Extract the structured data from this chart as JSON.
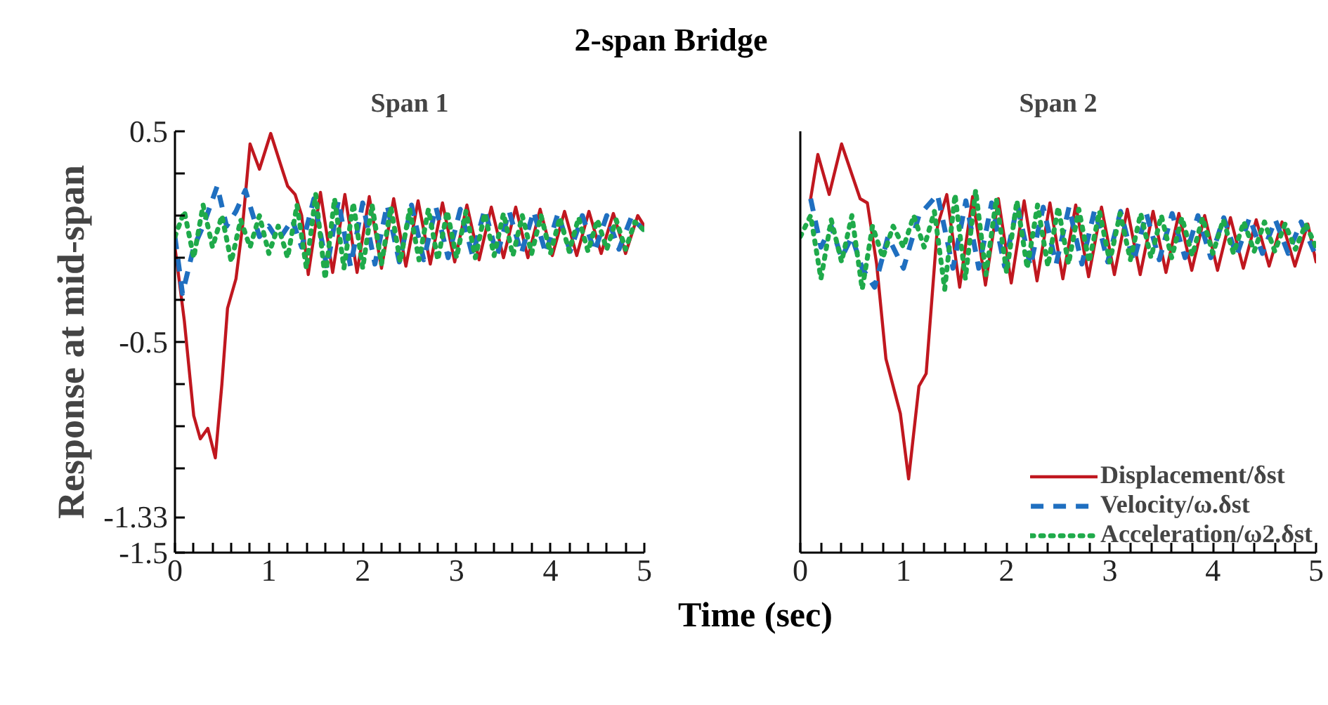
{
  "chart_data": [
    {
      "type": "line",
      "title": "2-span Bridge",
      "subtitle": "Span 1",
      "xlabel": "Time (sec)",
      "ylabel": "Response at mid-span",
      "xlim": [
        0,
        5
      ],
      "ylim": [
        -1.5,
        0.5
      ],
      "xticks": [
        0,
        {
          "value": 0.2,
          "label": null
        },
        {
          "value": 0.4,
          "label": null
        },
        {
          "value": 0.6,
          "label": null
        },
        {
          "value": 0.8,
          "label": null
        },
        1,
        {
          "value": 1.2,
          "label": null
        },
        {
          "value": 1.4,
          "label": null
        },
        {
          "value": 1.6,
          "label": null
        },
        {
          "value": 1.8,
          "label": null
        },
        2,
        {
          "value": 2.2,
          "label": null
        },
        {
          "value": 2.4,
          "label": null
        },
        {
          "value": 2.6,
          "label": null
        },
        {
          "value": 2.8,
          "label": null
        },
        3,
        {
          "value": 3.2,
          "label": null
        },
        {
          "value": 3.4,
          "label": null
        },
        {
          "value": 3.6,
          "label": null
        },
        {
          "value": 3.8,
          "label": null
        },
        4,
        {
          "value": 4.2,
          "label": null
        },
        {
          "value": 4.4,
          "label": null
        },
        {
          "value": 4.6,
          "label": null
        },
        {
          "value": 4.8,
          "label": null
        },
        5
      ],
      "yticks": [
        0.5,
        {
          "value": 0.3,
          "label": null
        },
        {
          "value": 0.1,
          "label": null
        },
        {
          "value": -0.1,
          "label": null
        },
        {
          "value": -0.3,
          "label": null
        },
        -0.5,
        {
          "value": -0.7,
          "label": null
        },
        {
          "value": -0.9,
          "label": null
        },
        {
          "value": -1.1,
          "label": null
        },
        -1.33,
        -1.5
      ],
      "series": [
        {
          "color": "#c0171f",
          "line_style": "solid",
          "x": [
            0,
            0.1,
            0.2,
            0.27,
            0.35,
            0.43,
            0.5,
            0.56,
            0.65,
            0.72,
            0.8,
            0.9,
            1.02,
            1.12,
            1.2,
            1.28,
            1.35,
            1.42,
            1.55,
            1.68,
            1.81,
            1.94,
            2.07,
            2.2,
            2.33,
            2.46,
            2.59,
            2.72,
            2.85,
            2.98,
            3.11,
            3.24,
            3.37,
            3.5,
            3.63,
            3.76,
            3.89,
            4.02,
            4.15,
            4.28,
            4.41,
            4.54,
            4.67,
            4.8,
            4.93,
            5
          ],
          "values": [
            -0.05,
            -0.4,
            -0.85,
            -0.96,
            -0.91,
            -1.05,
            -0.7,
            -0.34,
            -0.2,
            0.05,
            0.44,
            0.32,
            0.49,
            0.35,
            0.24,
            0.2,
            0.1,
            -0.18,
            0.21,
            -0.17,
            0.2,
            -0.17,
            0.19,
            -0.15,
            0.18,
            -0.14,
            0.17,
            -0.13,
            0.16,
            -0.12,
            0.15,
            -0.11,
            0.14,
            -0.1,
            0.14,
            -0.1,
            0.13,
            -0.09,
            0.12,
            -0.09,
            0.12,
            -0.08,
            0.11,
            -0.08,
            0.1,
            0.05
          ]
        },
        {
          "color": "#1f6fc0",
          "line_style": "dashed",
          "x": [
            0,
            0.08,
            0.2,
            0.3,
            0.45,
            0.55,
            0.65,
            0.75,
            0.9,
            1.0,
            1.1,
            1.25,
            1.35,
            1.48,
            1.62,
            1.74,
            1.87,
            2.0,
            2.13,
            2.26,
            2.39,
            2.52,
            2.65,
            2.78,
            2.91,
            3.04,
            3.17,
            3.3,
            3.43,
            3.56,
            3.69,
            3.82,
            3.95,
            4.08,
            4.21,
            4.34,
            4.47,
            4.6,
            4.73,
            4.86,
            5.0
          ],
          "values": [
            0.0,
            -0.27,
            -0.05,
            0.05,
            0.24,
            0.05,
            0.12,
            0.22,
            0.0,
            0.05,
            -0.02,
            0.08,
            -0.05,
            0.18,
            -0.15,
            0.17,
            -0.14,
            0.16,
            -0.13,
            0.15,
            -0.12,
            0.15,
            -0.11,
            0.14,
            -0.1,
            0.13,
            -0.09,
            0.13,
            -0.09,
            0.12,
            -0.08,
            0.12,
            -0.08,
            0.11,
            -0.07,
            0.1,
            -0.07,
            0.1,
            -0.06,
            0.09,
            0.03
          ]
        },
        {
          "color": "#1faa4a",
          "line_style": "dotted",
          "x": [
            0,
            0.1,
            0.2,
            0.3,
            0.4,
            0.5,
            0.6,
            0.7,
            0.8,
            0.9,
            1.0,
            1.1,
            1.2,
            1.3,
            1.4,
            1.5,
            1.6,
            1.7,
            1.8,
            1.9,
            2.0,
            2.1,
            2.2,
            2.3,
            2.4,
            2.5,
            2.6,
            2.7,
            2.8,
            2.9,
            3.0,
            3.1,
            3.2,
            3.3,
            3.4,
            3.5,
            3.6,
            3.7,
            3.8,
            3.9,
            4.0,
            4.1,
            4.2,
            4.3,
            4.4,
            4.5,
            4.6,
            4.7,
            4.8,
            4.9,
            5.0
          ],
          "values": [
            0.0,
            0.12,
            -0.1,
            0.15,
            -0.05,
            0.1,
            -0.12,
            0.08,
            -0.05,
            0.1,
            -0.08,
            0.05,
            -0.1,
            0.15,
            -0.15,
            0.2,
            -0.2,
            0.18,
            -0.15,
            0.16,
            -0.15,
            0.15,
            -0.13,
            0.14,
            -0.12,
            0.13,
            -0.11,
            0.13,
            -0.11,
            0.12,
            -0.1,
            0.12,
            -0.1,
            0.11,
            -0.09,
            0.11,
            -0.09,
            0.1,
            -0.08,
            0.1,
            -0.08,
            0.09,
            -0.07,
            0.09,
            -0.07,
            0.08,
            -0.06,
            0.08,
            -0.06,
            0.07,
            0.03
          ]
        }
      ]
    },
    {
      "type": "line",
      "subtitle": "Span 2",
      "xlim": [
        0,
        5
      ],
      "ylim": [
        -1.5,
        0.5
      ],
      "tick_labels": "x",
      "legend": "bottom right",
      "xticks": [
        0,
        {
          "value": 0.2,
          "label": null
        },
        {
          "value": 0.4,
          "label": null
        },
        {
          "value": 0.6,
          "label": null
        },
        {
          "value": 0.8,
          "label": null
        },
        1,
        {
          "value": 1.2,
          "label": null
        },
        {
          "value": 1.4,
          "label": null
        },
        {
          "value": 1.6,
          "label": null
        },
        {
          "value": 1.8,
          "label": null
        },
        2,
        {
          "value": 2.2,
          "label": null
        },
        {
          "value": 2.4,
          "label": null
        },
        {
          "value": 2.6,
          "label": null
        },
        {
          "value": 2.8,
          "label": null
        },
        3,
        {
          "value": 3.2,
          "label": null
        },
        {
          "value": 3.4,
          "label": null
        },
        {
          "value": 3.6,
          "label": null
        },
        {
          "value": 3.8,
          "label": null
        },
        4,
        {
          "value": 4.2,
          "label": null
        },
        {
          "value": 4.4,
          "label": null
        },
        {
          "value": 4.6,
          "label": null
        },
        {
          "value": 4.8,
          "label": null
        },
        5
      ],
      "series": [
        {
          "name": "Displacement/δst",
          "color": "#c0171f",
          "line_style": "solid",
          "x": [
            0.1,
            0.17,
            0.28,
            0.4,
            0.58,
            0.65,
            0.74,
            0.83,
            0.97,
            1.05,
            1.15,
            1.22,
            1.33,
            1.42,
            1.545,
            1.67,
            1.795,
            1.92,
            2.045,
            2.17,
            2.295,
            2.42,
            2.545,
            2.67,
            2.795,
            2.92,
            3.045,
            3.17,
            3.295,
            3.42,
            3.545,
            3.67,
            3.795,
            3.92,
            4.045,
            4.17,
            4.295,
            4.42,
            4.545,
            4.67,
            4.795,
            4.92,
            5.0
          ],
          "values": [
            0.18,
            0.39,
            0.2,
            0.44,
            0.18,
            0.16,
            -0.13,
            -0.58,
            -0.84,
            -1.15,
            -0.71,
            -0.65,
            0.05,
            0.2,
            -0.24,
            0.19,
            -0.23,
            0.18,
            -0.22,
            0.17,
            -0.21,
            0.16,
            -0.2,
            0.15,
            -0.19,
            0.14,
            -0.18,
            0.13,
            -0.18,
            0.12,
            -0.17,
            0.11,
            -0.16,
            0.1,
            -0.16,
            0.09,
            -0.15,
            0.08,
            -0.14,
            0.07,
            -0.14,
            0.06,
            -0.12
          ]
        },
        {
          "name": "Velocity/ω.δst",
          "color": "#1f6fc0",
          "line_style": "dashed",
          "x": [
            0.1,
            0.2,
            0.3,
            0.4,
            0.5,
            0.6,
            0.72,
            0.85,
            1.0,
            1.15,
            1.33,
            1.48,
            1.605,
            1.73,
            1.855,
            1.98,
            2.105,
            2.23,
            2.355,
            2.48,
            2.605,
            2.73,
            2.855,
            2.98,
            3.105,
            3.23,
            3.355,
            3.48,
            3.605,
            3.73,
            3.855,
            3.98,
            4.105,
            4.23,
            4.355,
            4.48,
            4.605,
            4.73,
            4.855,
            4.98
          ],
          "values": [
            0.18,
            -0.05,
            0.05,
            -0.1,
            0.0,
            -0.15,
            -0.24,
            0.0,
            -0.15,
            0.1,
            0.2,
            -0.15,
            0.17,
            -0.15,
            0.16,
            -0.14,
            0.15,
            -0.14,
            0.14,
            -0.13,
            0.14,
            -0.13,
            0.13,
            -0.12,
            0.12,
            -0.12,
            0.11,
            -0.11,
            0.11,
            -0.1,
            0.1,
            -0.1,
            0.09,
            -0.09,
            0.09,
            -0.08,
            0.08,
            -0.08,
            0.07,
            -0.07
          ]
        },
        {
          "name": "Acceleration/ω2.δst",
          "color": "#1faa4a",
          "line_style": "dotted",
          "x": [
            0,
            0.1,
            0.2,
            0.3,
            0.4,
            0.5,
            0.6,
            0.7,
            0.8,
            0.9,
            1.0,
            1.1,
            1.2,
            1.3,
            1.4,
            1.5,
            1.6,
            1.7,
            1.8,
            1.9,
            2.0,
            2.1,
            2.2,
            2.3,
            2.4,
            2.5,
            2.6,
            2.7,
            2.8,
            2.9,
            3.0,
            3.1,
            3.2,
            3.3,
            3.4,
            3.5,
            3.6,
            3.7,
            3.8,
            3.9,
            4.0,
            4.1,
            4.2,
            4.3,
            4.4,
            4.5,
            4.6,
            4.7,
            4.8,
            4.9,
            5.0
          ],
          "values": [
            0.0,
            0.1,
            -0.2,
            0.08,
            -0.12,
            0.1,
            -0.25,
            0.05,
            -0.1,
            0.05,
            -0.05,
            0.1,
            -0.05,
            0.12,
            -0.25,
            0.2,
            -0.2,
            0.22,
            -0.18,
            0.18,
            -0.17,
            0.17,
            -0.15,
            0.15,
            -0.14,
            0.14,
            -0.13,
            0.13,
            -0.12,
            0.12,
            -0.12,
            0.11,
            -0.11,
            0.11,
            -0.1,
            0.1,
            -0.1,
            0.09,
            -0.09,
            0.09,
            -0.08,
            0.08,
            -0.08,
            0.07,
            -0.07,
            0.07,
            -0.07,
            0.06,
            -0.06,
            0.06,
            -0.05
          ]
        }
      ]
    }
  ]
}
